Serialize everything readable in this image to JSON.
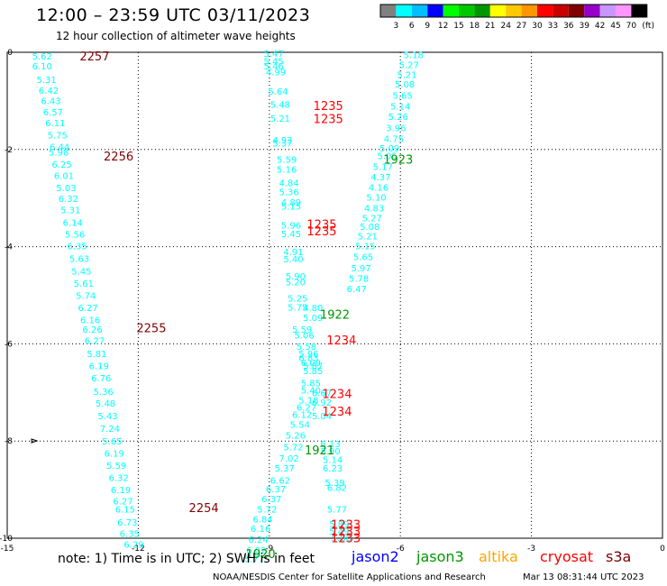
{
  "header": {
    "title": "12:00 – 23:59 UTC 03/11/2023",
    "subtitle": "12 hour collection of altimeter wave heights"
  },
  "legend": {
    "colors": [
      "#808080",
      "#00ffff",
      "#00bfff",
      "#0000ff",
      "#00ff00",
      "#00c800",
      "#009600",
      "#ffff00",
      "#ffc800",
      "#ff9600",
      "#ff0000",
      "#c80000",
      "#800000",
      "#9600c8",
      "#c896ff",
      "#ff96ff",
      "#000000"
    ],
    "labels": [
      "3",
      "6",
      "9",
      "12",
      "15",
      "18",
      "21",
      "24",
      "27",
      "30",
      "33",
      "36",
      "39",
      "42",
      "45",
      "70"
    ],
    "unit": "(ft)"
  },
  "footer": {
    "note": "note:  1) Time is in UTC;  2) SWH is in feet",
    "satellites": [
      {
        "name": "jason2",
        "color": "#0000ff"
      },
      {
        "name": "jason3",
        "color": "#009600"
      },
      {
        "name": "altika",
        "color": "#ffa500"
      },
      {
        "name": "cryosat",
        "color": "#ff0000"
      },
      {
        "name": "s3a",
        "color": "#800000"
      }
    ],
    "credit": "NOAA/NESDIS Center for Satellite Applications and Research",
    "timestamp": "Mar 13 08:31:44 UTC 2023"
  },
  "chart_data": {
    "type": "scatter",
    "xlim": [
      -15,
      0
    ],
    "ylim": [
      -10,
      0
    ],
    "xticks": [
      "-15",
      "-12",
      "-9",
      "-6",
      "-3",
      "0"
    ],
    "yticks": [
      "0",
      "-2",
      "-4",
      "-6",
      "-8",
      "-10"
    ],
    "grid": true,
    "track_color": "#00ffff",
    "tracks": [
      {
        "name": "track-1",
        "points": [
          [
            -14.2,
            -0.07,
            "5.62"
          ],
          [
            -14.2,
            -0.28,
            "6.10"
          ],
          [
            -14.1,
            -0.56,
            "5.31"
          ],
          [
            -14.05,
            -0.78,
            "6.42"
          ],
          [
            -14.0,
            -0.99,
            "6.43"
          ],
          [
            -13.95,
            -1.22,
            "6.57"
          ],
          [
            -13.9,
            -1.45,
            "6.11"
          ],
          [
            -13.85,
            -1.7,
            "5.75"
          ],
          [
            -13.8,
            -1.94,
            "6.44"
          ],
          [
            -13.82,
            -2.05,
            "5.98"
          ],
          [
            -13.75,
            -2.3,
            "6.25"
          ],
          [
            -13.7,
            -2.53,
            "6.01"
          ],
          [
            -13.65,
            -2.78,
            "5.03"
          ],
          [
            -13.6,
            -3.01,
            "6.32"
          ],
          [
            -13.55,
            -3.24,
            "5.31"
          ],
          [
            -13.5,
            -3.5,
            "6.14"
          ],
          [
            -13.45,
            -3.74,
            "5.56"
          ],
          [
            -13.4,
            -3.98,
            "6.35"
          ],
          [
            -13.35,
            -4.24,
            "5.63"
          ],
          [
            -13.3,
            -4.5,
            "5.45"
          ],
          [
            -13.25,
            -4.75,
            "5.61"
          ],
          [
            -13.2,
            -5.0,
            "5.74"
          ],
          [
            -13.15,
            -5.25,
            "6.27"
          ],
          [
            -13.1,
            -5.5,
            "6.16"
          ],
          [
            -13.05,
            -5.7,
            "6.26"
          ],
          [
            -13.0,
            -5.93,
            "6.27"
          ],
          [
            -12.95,
            -6.2,
            "5.81"
          ],
          [
            -12.9,
            -6.45,
            "6.19"
          ],
          [
            -12.85,
            -6.7,
            "6.76"
          ],
          [
            -12.8,
            -6.98,
            "5.36"
          ],
          [
            -12.75,
            -7.22,
            "5.48"
          ],
          [
            -12.7,
            -7.48,
            "5.43"
          ],
          [
            -12.65,
            -7.74,
            "7.24"
          ],
          [
            -12.6,
            -8.0,
            "5.65"
          ],
          [
            -12.55,
            -8.25,
            "6.19"
          ],
          [
            -12.5,
            -8.5,
            "5.59"
          ],
          [
            -12.45,
            -8.75,
            "6.32"
          ],
          [
            -12.4,
            -9.0,
            "6.19"
          ],
          [
            -12.35,
            -9.23,
            "6.27"
          ],
          [
            -12.3,
            -9.4,
            "6.15"
          ],
          [
            -12.25,
            -9.67,
            "6.73"
          ],
          [
            -12.2,
            -9.9,
            "6.35"
          ],
          [
            -12.1,
            -10.12,
            "6.29"
          ]
        ]
      },
      {
        "name": "track-2",
        "points": [
          [
            -8.9,
            -0.02,
            "5.47"
          ],
          [
            -8.9,
            -0.18,
            "5.45"
          ],
          [
            -8.9,
            -0.28,
            "5.46"
          ],
          [
            -8.85,
            -0.4,
            "4.99"
          ],
          [
            -8.8,
            -0.8,
            "5.64"
          ],
          [
            -8.75,
            -1.07,
            "5.48"
          ],
          [
            -8.75,
            -1.35,
            "5.21"
          ],
          [
            -8.7,
            -1.8,
            "4.93"
          ],
          [
            -8.7,
            -1.86,
            "5.37"
          ],
          [
            -8.6,
            -2.2,
            "5.59"
          ],
          [
            -8.6,
            -2.4,
            "5.16"
          ],
          [
            -8.55,
            -2.68,
            "4.84"
          ],
          [
            -8.55,
            -2.87,
            "5.36"
          ],
          [
            -8.5,
            -3.08,
            "4.89"
          ],
          [
            -8.5,
            -3.16,
            "5.15"
          ],
          [
            -8.5,
            -3.55,
            "5.96"
          ],
          [
            -8.5,
            -3.73,
            "5.45"
          ],
          [
            -8.45,
            -4.1,
            "4.91"
          ],
          [
            -8.45,
            -4.25,
            "5.40"
          ],
          [
            -8.4,
            -4.6,
            "5.90"
          ],
          [
            -8.4,
            -4.72,
            "5.20"
          ],
          [
            -8.35,
            -5.06,
            "5.25"
          ],
          [
            -8.35,
            -5.24,
            "5.75"
          ],
          [
            -8.0,
            -5.25,
            "4.80"
          ],
          [
            -8.0,
            -5.45,
            "5.09"
          ],
          [
            -8.25,
            -5.7,
            "5.59"
          ],
          [
            -8.2,
            -5.82,
            "5.06"
          ],
          [
            -8.15,
            -6.05,
            "5.58"
          ],
          [
            -8.1,
            -6.2,
            "5.96"
          ],
          [
            -8.1,
            -6.28,
            "6.83"
          ],
          [
            -8.05,
            -6.38,
            "6.09"
          ],
          [
            -8.0,
            -6.45,
            "5.87"
          ],
          [
            -8.0,
            -6.55,
            "5.85"
          ],
          [
            -8.05,
            -6.8,
            "5.85"
          ],
          [
            -8.05,
            -6.95,
            "5.40"
          ],
          [
            -8.1,
            -7.15,
            "5.18"
          ],
          [
            -8.15,
            -7.3,
            "6.27"
          ],
          [
            -7.8,
            -7.0,
            "6.67"
          ],
          [
            -7.8,
            -7.2,
            "6.92"
          ],
          [
            -7.8,
            -7.48,
            "5.04"
          ],
          [
            -8.25,
            -7.45,
            "6.12"
          ],
          [
            -8.3,
            -7.65,
            "5.54"
          ],
          [
            -8.4,
            -7.88,
            "5.26"
          ],
          [
            -8.45,
            -8.12,
            "5.72"
          ],
          [
            -8.55,
            -8.35,
            "7.02"
          ],
          [
            -8.65,
            -8.55,
            "5.37"
          ],
          [
            -8.75,
            -8.8,
            "6.62"
          ],
          [
            -8.85,
            -8.98,
            "6.37"
          ],
          [
            -8.95,
            -9.18,
            "6.37"
          ],
          [
            -9.05,
            -9.4,
            "5.72"
          ],
          [
            -9.15,
            -9.6,
            "6.84"
          ],
          [
            -9.2,
            -9.8,
            "6.16"
          ],
          [
            -9.25,
            -10.02,
            "6.24"
          ],
          [
            -9.3,
            -10.24,
            "6.02"
          ],
          [
            -9.35,
            -10.42,
            "5.77"
          ],
          [
            -7.6,
            -8.05,
            "6.13"
          ],
          [
            -7.6,
            -8.2,
            "5.90"
          ],
          [
            -7.55,
            -8.38,
            "5.14"
          ],
          [
            -7.55,
            -8.55,
            "6.23"
          ],
          [
            -7.5,
            -8.85,
            "5.39"
          ],
          [
            -7.45,
            -8.95,
            "6.82"
          ],
          [
            -7.45,
            -9.4,
            "5.77"
          ],
          [
            -7.4,
            -9.7,
            "5.89"
          ],
          [
            -7.4,
            -9.85,
            "5.49"
          ],
          [
            -7.35,
            -9.98,
            "5.88"
          ]
        ]
      },
      {
        "name": "track-3",
        "points": [
          [
            -5.7,
            -0.05,
            "5.18"
          ],
          [
            -5.8,
            -0.25,
            "5.27"
          ],
          [
            -5.85,
            -0.45,
            "5.21"
          ],
          [
            -5.9,
            -0.65,
            "5.08"
          ],
          [
            -5.95,
            -0.88,
            "5.65"
          ],
          [
            -6.0,
            -1.1,
            "5.14"
          ],
          [
            -6.05,
            -1.32,
            "5.26"
          ],
          [
            -6.1,
            -1.55,
            "3.96"
          ],
          [
            -6.15,
            -1.77,
            "4.75"
          ],
          [
            -6.25,
            -1.97,
            "5.09"
          ],
          [
            -6.3,
            -2.12,
            "5.05"
          ],
          [
            -6.4,
            -2.35,
            "5.17"
          ],
          [
            -6.45,
            -2.56,
            "4.37"
          ],
          [
            -6.5,
            -2.77,
            "4.16"
          ],
          [
            -6.55,
            -2.98,
            "5.10"
          ],
          [
            -6.6,
            -3.2,
            "4.83"
          ],
          [
            -6.65,
            -3.4,
            "5.27"
          ],
          [
            -6.7,
            -3.58,
            "5.08"
          ],
          [
            -6.75,
            -3.78,
            "5.21"
          ],
          [
            -6.8,
            -3.98,
            "5.15"
          ],
          [
            -6.85,
            -4.2,
            "5.65"
          ],
          [
            -6.9,
            -4.43,
            "5.97"
          ],
          [
            -6.95,
            -4.65,
            "5.78"
          ],
          [
            -7.0,
            -4.86,
            "6.47"
          ]
        ]
      }
    ],
    "time_labels": [
      {
        "x": -13.0,
        "y": -0.07,
        "text": "2257",
        "sat": "s3a"
      },
      {
        "x": -12.45,
        "y": -2.13,
        "text": "2256",
        "sat": "s3a"
      },
      {
        "x": -11.7,
        "y": -5.67,
        "text": "2255",
        "sat": "s3a"
      },
      {
        "x": -10.5,
        "y": -9.37,
        "text": "2254",
        "sat": "s3a"
      },
      {
        "x": -7.65,
        "y": -1.09,
        "text": "1235",
        "sat": "cryosat"
      },
      {
        "x": -7.65,
        "y": -1.36,
        "text": "1235",
        "sat": "cryosat"
      },
      {
        "x": -7.8,
        "y": -3.53,
        "text": "1235",
        "sat": "cryosat"
      },
      {
        "x": -7.8,
        "y": -3.67,
        "text": "1235",
        "sat": "cryosat"
      },
      {
        "x": -6.05,
        "y": -2.2,
        "text": "1923",
        "sat": "jason3"
      },
      {
        "x": -7.5,
        "y": -5.39,
        "text": "1922",
        "sat": "jason3"
      },
      {
        "x": -7.35,
        "y": -5.92,
        "text": "1234",
        "sat": "cryosat"
      },
      {
        "x": -7.45,
        "y": -7.02,
        "text": "1234",
        "sat": "cryosat"
      },
      {
        "x": -7.45,
        "y": -7.38,
        "text": "1234",
        "sat": "cryosat"
      },
      {
        "x": -7.85,
        "y": -8.18,
        "text": "1921",
        "sat": "jason3"
      },
      {
        "x": -7.25,
        "y": -9.71,
        "text": "1233",
        "sat": "cryosat"
      },
      {
        "x": -7.25,
        "y": -9.85,
        "text": "1233",
        "sat": "cryosat"
      },
      {
        "x": -7.25,
        "y": -9.99,
        "text": "1233",
        "sat": "cryosat"
      },
      {
        "x": -9.2,
        "y": -10.32,
        "text": "1920",
        "sat": "jason3"
      }
    ]
  }
}
